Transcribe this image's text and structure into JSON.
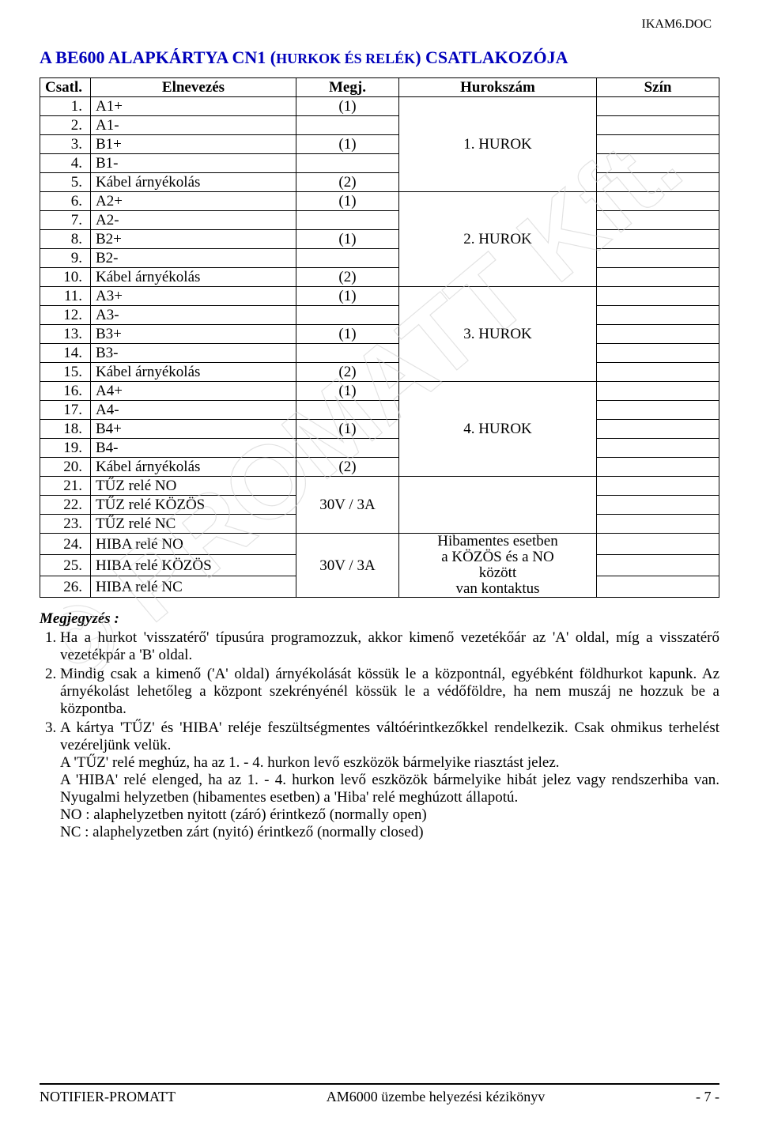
{
  "doc_tag": "IKAM6.DOC",
  "title_main": "A BE600 ALAPKÁRTYA CN1 (",
  "title_small": "HURKOK ÉS RELÉK",
  "title_tail": ")  CSATLAKOZÓJA",
  "columns": {
    "c1": "Csatl.",
    "c2": "Elnevezés",
    "c3": "Megj.",
    "c4": "Hurokszám",
    "c5": "Szín"
  },
  "groups": [
    {
      "loop": "1. HUROK",
      "rows": [
        {
          "n": "1.",
          "name": "A1+",
          "note": "(1)"
        },
        {
          "n": "2.",
          "name": "A1-",
          "note": ""
        },
        {
          "n": "3.",
          "name": "B1+",
          "note": "(1)"
        },
        {
          "n": "4.",
          "name": "B1-",
          "note": ""
        },
        {
          "n": "5.",
          "name": "Kábel árnyékolás",
          "note": "(2)"
        }
      ]
    },
    {
      "loop": "2. HUROK",
      "rows": [
        {
          "n": "6.",
          "name": "A2+",
          "note": "(1)"
        },
        {
          "n": "7.",
          "name": "A2-",
          "note": ""
        },
        {
          "n": "8.",
          "name": "B2+",
          "note": "(1)"
        },
        {
          "n": "9.",
          "name": "B2-",
          "note": ""
        },
        {
          "n": "10.",
          "name": "Kábel árnyékolás",
          "note": "(2)"
        }
      ]
    },
    {
      "loop": "3. HUROK",
      "rows": [
        {
          "n": "11.",
          "name": "A3+",
          "note": "(1)"
        },
        {
          "n": "12.",
          "name": "A3-",
          "note": ""
        },
        {
          "n": "13.",
          "name": "B3+",
          "note": "(1)"
        },
        {
          "n": "14.",
          "name": "B3-",
          "note": ""
        },
        {
          "n": "15.",
          "name": "Kábel árnyékolás",
          "note": "(2)"
        }
      ]
    },
    {
      "loop": "4. HUROK",
      "rows": [
        {
          "n": "16.",
          "name": "A4+",
          "note": "(1)"
        },
        {
          "n": "17.",
          "name": "A4-",
          "note": ""
        },
        {
          "n": "18.",
          "name": "B4+",
          "note": "(1)"
        },
        {
          "n": "19.",
          "name": "B4-",
          "note": ""
        },
        {
          "n": "20.",
          "name": "Kábel árnyékolás",
          "note": "(2)"
        }
      ]
    }
  ],
  "relay_group1": {
    "note": "30V / 3A",
    "loop": "",
    "rows": [
      {
        "n": "21.",
        "name": "TŰZ relé NO"
      },
      {
        "n": "22.",
        "name": "TŰZ relé KÖZÖS"
      },
      {
        "n": "23.",
        "name": "TŰZ relé NC"
      }
    ]
  },
  "relay_group2": {
    "note": "30V / 3A",
    "loop_lines": [
      "Hibamentes esetben",
      "a KÖZÖS és a NO",
      "között",
      "van kontaktus"
    ],
    "rows": [
      {
        "n": "24.",
        "name": "HIBA relé NO"
      },
      {
        "n": "25.",
        "name": "HIBA relé KÖZÖS"
      },
      {
        "n": "26.",
        "name": "HIBA relé NC"
      }
    ]
  },
  "notes_head": "Megjegyzés :",
  "notes": [
    "Ha a hurkot 'visszatérő' típusúra programozzuk, akkor kimenő vezetékőár az 'A' oldal, míg a visszatérő vezetékpár a 'B' oldal.",
    "Mindig csak a kimenő ('A' oldal) árnyékolását kössük le a központnál, egyébként földhurkot kapunk. Az árnyékolást lehetőleg a központ szekrényénél kössük le a védőföldre, ha nem muszáj ne hozzuk be a központba.",
    "A kártya 'TŰZ' és 'HIBA' reléje feszültségmentes váltóérintkezőkkel rendelkezik. Csak ohmikus terhelést vezéreljünk velük."
  ],
  "note3_extra": [
    "A 'TŰZ' relé meghúz, ha az 1. - 4. hurkon levő eszközök bármelyike riasztást jelez.",
    "A 'HIBA' relé elenged, ha az 1. - 4. hurkon levő eszközök bármelyike hibát jelez vagy rendszerhiba van. Nyugalmi helyzetben (hibamentes esetben) a 'Hiba' relé meghúzott állapotú.",
    "NO : alaphelyzetben nyitott (záró) érintkező (normally open)",
    "NC : alaphelyzetben zárt (nyitó) érintkező (normally closed)"
  ],
  "footer": {
    "left": "NOTIFIER-PROMATT",
    "center": "AM6000 üzembe helyezési kézikönyv",
    "right": "- 7 -"
  },
  "watermark_text": "© PROMATT Kft."
}
